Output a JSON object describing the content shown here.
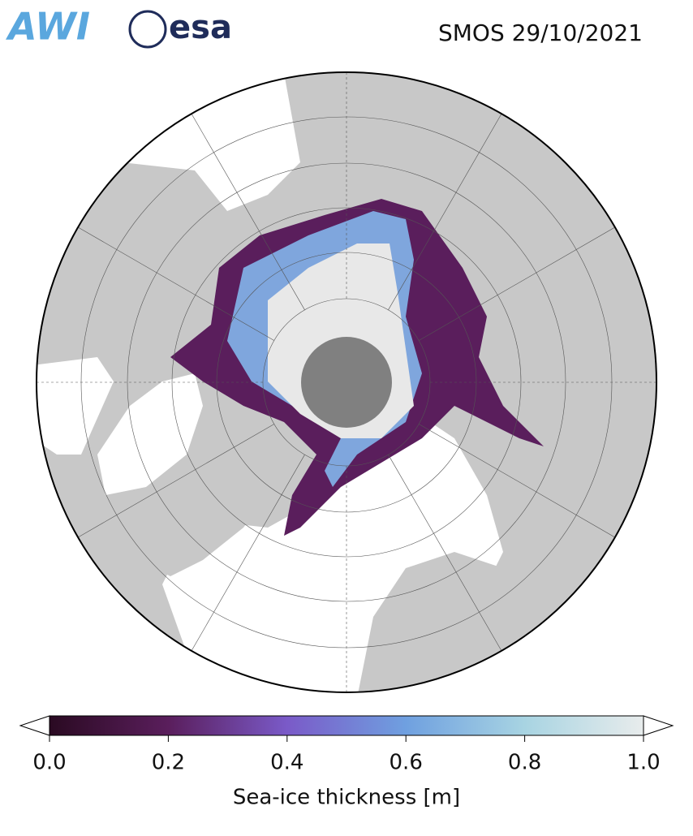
{
  "header": {
    "logos": [
      "AWI",
      "esa"
    ],
    "title": "SMOS 29/10/2021"
  },
  "colorbar": {
    "label": "Sea-ice thickness [m]",
    "lim": [
      0,
      1
    ],
    "ticks": [
      {
        "value": 0,
        "label": "0.0"
      },
      {
        "value": 0.2,
        "label": "0.2"
      },
      {
        "value": 0.4,
        "label": "0.4"
      },
      {
        "value": 0.6,
        "label": "0.6"
      },
      {
        "value": 0.8,
        "label": "0.8"
      },
      {
        "value": 1,
        "label": "1.0"
      }
    ],
    "colors": [
      "#2a0a22",
      "#5a1e5c",
      "#7a5ac8",
      "#6fa0e0",
      "#a8d4e2",
      "#e8ecec"
    ]
  }
}
